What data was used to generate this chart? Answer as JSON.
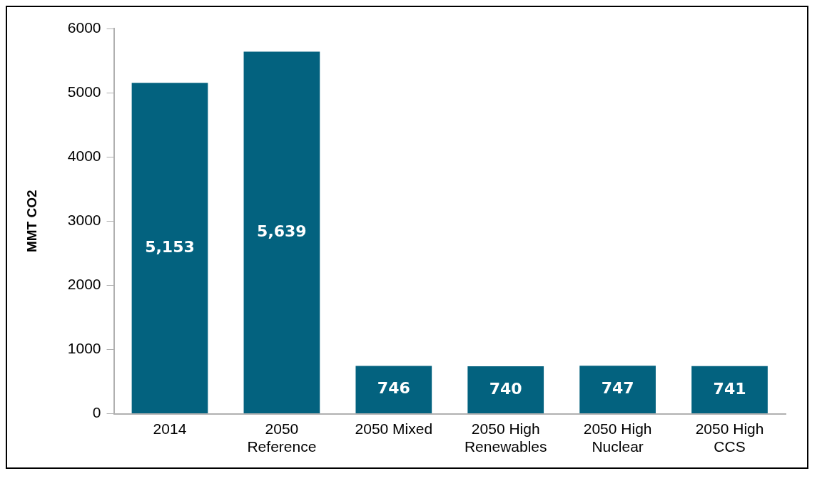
{
  "chart_data": {
    "type": "bar",
    "ylabel": "MMT CO2",
    "categories": [
      "2014",
      "2050 Reference",
      "2050 Mixed",
      "2050 High Renewables",
      "2050 High Nuclear",
      "2050 High CCS"
    ],
    "values": [
      5153,
      5639,
      746,
      740,
      747,
      741
    ],
    "value_labels": [
      "5,153",
      "5,639",
      "746",
      "740",
      "747",
      "741"
    ],
    "color": "#03627f",
    "ylim": [
      0,
      6000
    ],
    "yticks": [
      0,
      1000,
      2000,
      3000,
      4000,
      5000,
      6000
    ],
    "grid": false,
    "legend": false
  }
}
